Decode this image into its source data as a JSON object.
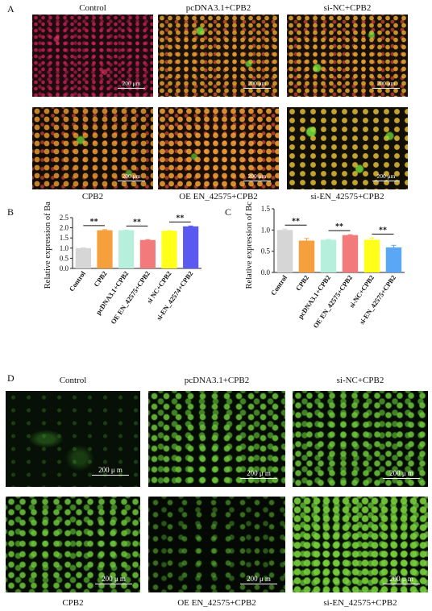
{
  "panel_labels": {
    "A": "A",
    "B": "B",
    "C": "C",
    "D": "D"
  },
  "panelA": {
    "top_labels": [
      "Control",
      "pcDNA3.1+CPB2",
      "si-NC+CPB2"
    ],
    "bottom_labels": [
      "CPB2",
      "OE EN_42575+CPB2",
      "si-EN_42575+CPB2"
    ],
    "scale_text": "200 μm"
  },
  "panelD": {
    "top_labels": [
      "Control",
      "pcDNA3.1+CPB2",
      "si-NC+CPB2"
    ],
    "bottom_labels": [
      "CPB2",
      "OE EN_42575+CPB2",
      "si-EN_42575+CPB2"
    ],
    "scale_text": "200 μ m"
  },
  "chart_data": [
    {
      "type": "bar",
      "ylabel": "Relative expression of Bax",
      "ylim": [
        0,
        2.5
      ],
      "yticks": [
        0.0,
        0.5,
        1.0,
        1.5,
        2.0,
        2.5
      ],
      "categories": [
        "Control",
        "CPB2",
        "pcDNA3.1+CPB2",
        "OE EN_42575+CPB2",
        "si NC+CPB2",
        "si-EN_42574+CPB2"
      ],
      "values": [
        1.0,
        1.88,
        1.88,
        1.4,
        1.85,
        2.07
      ],
      "errors": [
        0.01,
        0.03,
        0.01,
        0.02,
        0.01,
        0.02
      ],
      "colors": [
        "#d6d6d6",
        "#f5a03c",
        "#b6f0dc",
        "#f27a7a",
        "#ffff1a",
        "#5a5af0"
      ],
      "significance": [
        {
          "from": 0,
          "to": 1,
          "label": "**"
        },
        {
          "from": 2,
          "to": 3,
          "label": "**"
        },
        {
          "from": 4,
          "to": 5,
          "label": "**"
        }
      ]
    },
    {
      "type": "bar",
      "ylabel": "Relative expression of Bcl-2",
      "ylim": [
        0,
        1.5
      ],
      "yticks": [
        0.0,
        0.5,
        1.0,
        1.5
      ],
      "categories": [
        "Control",
        "CPB2",
        "pcDNA3.1+CPB2",
        "OE EN_42575+CPB2",
        "si-NC+CPB2",
        "si-EN_42575+CPB2"
      ],
      "values": [
        1.0,
        0.75,
        0.77,
        0.88,
        0.77,
        0.59
      ],
      "errors": [
        0.02,
        0.05,
        0.01,
        0.01,
        0.04,
        0.05
      ],
      "colors": [
        "#d6d6d6",
        "#f5a03c",
        "#b6f0dc",
        "#f27a7a",
        "#ffff1a",
        "#5aa8f5"
      ],
      "significance": [
        {
          "from": 0,
          "to": 1,
          "label": "**"
        },
        {
          "from": 2,
          "to": 3,
          "label": "**"
        },
        {
          "from": 4,
          "to": 5,
          "label": "**"
        }
      ]
    }
  ]
}
